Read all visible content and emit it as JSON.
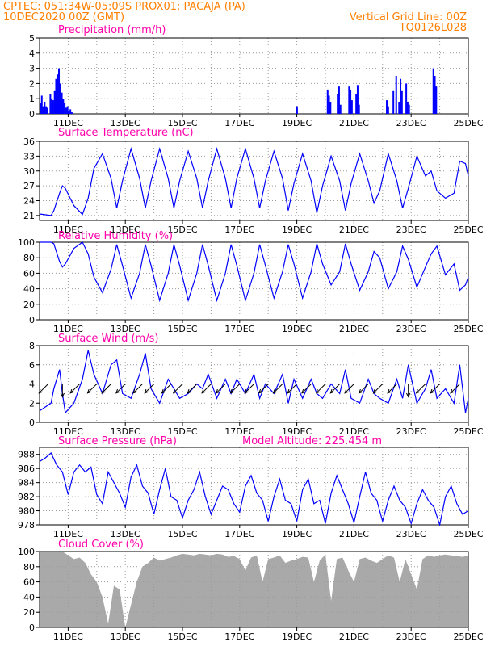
{
  "header": {
    "line1_left": "CPTEC:    051:34W-05:09S    PROX01: PACAJA (PA)",
    "line2_left": "10DEC2020 00Z (GMT)",
    "line2_right": "Vertical Grid Line: 00Z",
    "line3_right": "TQ0126L028"
  },
  "colors": {
    "header": "#ff8000",
    "title": "#ff00aa",
    "line": "#0000ff",
    "cloud": "#a9a9a9",
    "grid": "#9a9a9a"
  },
  "x_axis": {
    "tick_labels": [
      "11DEC",
      "13DEC",
      "15DEC",
      "17DEC",
      "19DEC",
      "21DEC",
      "23DEC",
      "25DEC"
    ],
    "tick_days": [
      11,
      13,
      15,
      17,
      19,
      21,
      23,
      25
    ],
    "start_day": 10,
    "end_day": 25
  },
  "chart_data": [
    {
      "type": "bar",
      "title": "Precipitation (mm/h)",
      "ylim": [
        0,
        5
      ],
      "yticks": [
        0,
        1,
        2,
        3,
        4,
        5
      ],
      "grid": true,
      "x": [
        10.0,
        10.05,
        10.1,
        10.15,
        10.2,
        10.25,
        10.35,
        10.4,
        10.45,
        10.5,
        10.55,
        10.6,
        10.65,
        10.7,
        10.75,
        10.8,
        10.85,
        10.9,
        10.95,
        11.0,
        11.05,
        11.1,
        18.98,
        20.05,
        20.1,
        20.15,
        20.4,
        20.45,
        20.5,
        20.8,
        20.85,
        20.9,
        21.05,
        21.1,
        21.15,
        22.12,
        22.17,
        22.35,
        22.45,
        22.55,
        22.6,
        22.65,
        22.8,
        22.85,
        22.9,
        23.75,
        23.8,
        23.85
      ],
      "values": [
        0.7,
        1.2,
        0.5,
        0.8,
        0.5,
        0.4,
        1.3,
        1.0,
        0.9,
        1.5,
        2.3,
        2.6,
        3.0,
        2.0,
        1.4,
        1.0,
        0.7,
        0.4,
        0.5,
        0.2,
        0.3,
        0.1,
        0.5,
        1.6,
        1.2,
        0.8,
        1.3,
        1.8,
        0.6,
        1.8,
        1.6,
        0.9,
        1.3,
        1.9,
        0.6,
        0.9,
        0.5,
        1.5,
        2.5,
        0.8,
        2.3,
        1.5,
        2.0,
        0.8,
        0.6,
        3.0,
        2.5,
        1.8
      ]
    },
    {
      "type": "line",
      "title": "Surface Temperature (nC)",
      "ylim": [
        20,
        36
      ],
      "yticks": [
        21,
        24,
        27,
        30,
        33,
        36
      ],
      "grid": true,
      "x": [
        10.0,
        10.4,
        10.5,
        10.7,
        10.8,
        10.9,
        11.2,
        11.5,
        11.7,
        11.9,
        12.2,
        12.5,
        12.7,
        12.9,
        13.2,
        13.5,
        13.7,
        13.9,
        14.2,
        14.5,
        14.7,
        14.9,
        15.2,
        15.5,
        15.7,
        15.9,
        16.2,
        16.5,
        16.7,
        16.9,
        17.2,
        17.5,
        17.7,
        17.9,
        18.2,
        18.5,
        18.7,
        18.9,
        19.2,
        19.5,
        19.7,
        19.9,
        20.2,
        20.5,
        20.7,
        20.9,
        21.2,
        21.5,
        21.7,
        21.9,
        22.2,
        22.5,
        22.7,
        22.9,
        23.2,
        23.5,
        23.7,
        23.9,
        24.2,
        24.5,
        24.7,
        24.9,
        25.0
      ],
      "values": [
        21.3,
        21.0,
        22.0,
        25.5,
        27.0,
        26.5,
        23.0,
        21.2,
        24.5,
        30.5,
        33.5,
        28.5,
        22.5,
        28.0,
        34.5,
        28.5,
        22.5,
        28.0,
        34.5,
        28.5,
        22.5,
        28.0,
        34.0,
        28.5,
        22.5,
        28.0,
        34.5,
        28.5,
        22.5,
        28.5,
        34.5,
        28.5,
        22.5,
        28.0,
        34.0,
        28.5,
        22.0,
        27.5,
        33.5,
        28.0,
        21.5,
        27.0,
        33.0,
        28.0,
        22.0,
        27.5,
        33.5,
        28.0,
        23.5,
        26.0,
        33.5,
        28.0,
        22.5,
        26.5,
        33.0,
        29.0,
        30.0,
        26.0,
        24.5,
        25.5,
        32.0,
        31.5,
        29.0
      ]
    },
    {
      "type": "line",
      "title": "Relative Humidity (%)",
      "ylim": [
        0,
        100
      ],
      "yticks": [
        0,
        20,
        40,
        60,
        80,
        100
      ],
      "grid": true,
      "x": [
        10.0,
        10.4,
        10.5,
        10.7,
        10.8,
        10.9,
        11.2,
        11.5,
        11.7,
        11.9,
        12.2,
        12.5,
        12.7,
        12.9,
        13.2,
        13.5,
        13.7,
        13.9,
        14.2,
        14.5,
        14.7,
        14.9,
        15.2,
        15.5,
        15.7,
        15.9,
        16.2,
        16.5,
        16.7,
        16.9,
        17.2,
        17.5,
        17.7,
        17.9,
        18.2,
        18.5,
        18.7,
        18.9,
        19.2,
        19.5,
        19.7,
        19.9,
        20.2,
        20.5,
        20.7,
        20.9,
        21.2,
        21.5,
        21.7,
        21.9,
        22.2,
        22.5,
        22.7,
        22.9,
        23.2,
        23.5,
        23.7,
        23.9,
        24.2,
        24.5,
        24.7,
        24.9,
        25.0
      ],
      "values": [
        100,
        100,
        98,
        75,
        68,
        72,
        92,
        100,
        85,
        55,
        35,
        65,
        97,
        70,
        28,
        60,
        97,
        70,
        25,
        60,
        97,
        70,
        25,
        60,
        97,
        70,
        25,
        60,
        97,
        70,
        25,
        60,
        97,
        70,
        28,
        62,
        97,
        72,
        28,
        62,
        98,
        72,
        45,
        62,
        98,
        72,
        38,
        62,
        88,
        80,
        40,
        62,
        95,
        78,
        42,
        68,
        85,
        95,
        58,
        72,
        38,
        45,
        55
      ]
    },
    {
      "type": "line",
      "title": "Surface Wind (m/s)",
      "ylim": [
        0,
        8
      ],
      "yticks": [
        0,
        2,
        4,
        6,
        8
      ],
      "grid": true,
      "x": [
        10.0,
        10.4,
        10.5,
        10.7,
        10.8,
        10.9,
        11.2,
        11.5,
        11.7,
        11.9,
        12.2,
        12.5,
        12.7,
        12.9,
        13.2,
        13.5,
        13.7,
        13.9,
        14.2,
        14.5,
        14.7,
        14.9,
        15.2,
        15.5,
        15.7,
        15.9,
        16.2,
        16.5,
        16.7,
        16.9,
        17.2,
        17.5,
        17.7,
        17.9,
        18.2,
        18.5,
        18.7,
        18.9,
        19.2,
        19.5,
        19.7,
        19.9,
        20.2,
        20.5,
        20.7,
        20.9,
        21.2,
        21.5,
        21.7,
        21.9,
        22.2,
        22.5,
        22.7,
        22.9,
        23.2,
        23.5,
        23.7,
        23.9,
        24.2,
        24.5,
        24.7,
        24.9,
        25.0
      ],
      "values": [
        1.2,
        2.0,
        3.5,
        5.5,
        3.0,
        1.0,
        2.0,
        4.5,
        7.5,
        5.0,
        3.0,
        6.0,
        6.5,
        3.0,
        2.5,
        5.0,
        7.2,
        3.5,
        2.0,
        4.5,
        3.5,
        2.5,
        3.0,
        4.0,
        3.5,
        5.0,
        2.5,
        4.5,
        3.0,
        4.5,
        3.0,
        5.0,
        2.5,
        4.0,
        3.0,
        5.0,
        2.0,
        4.5,
        2.5,
        4.5,
        3.0,
        2.5,
        4.0,
        3.0,
        5.5,
        2.5,
        2.0,
        4.5,
        3.0,
        2.5,
        2.0,
        4.5,
        2.5,
        6.0,
        2.0,
        3.5,
        5.5,
        2.5,
        3.5,
        2.0,
        6.0,
        1.0,
        2.5
      ],
      "wind_barbs": {
        "x": [
          10.3,
          10.8,
          11.4,
          12.0,
          12.5,
          13.0,
          13.6,
          14.0,
          14.6,
          15.0,
          15.5,
          16.0,
          16.5,
          17.0,
          17.5,
          18.0,
          18.5,
          19.0,
          19.5,
          20.0,
          20.5,
          21.0,
          21.5,
          22.0,
          22.5,
          22.9,
          23.5,
          24.0,
          24.7
        ],
        "direction_deg": [
          45,
          90,
          45,
          45,
          45,
          45,
          45,
          45,
          45,
          45,
          45,
          45,
          45,
          45,
          45,
          45,
          45,
          45,
          45,
          45,
          45,
          45,
          45,
          45,
          45,
          90,
          45,
          45,
          45
        ]
      }
    },
    {
      "type": "line",
      "title": "Surface Pressure (hPa)",
      "subtitle": "Model Altitude: 225.454 m",
      "ylim": [
        978,
        989
      ],
      "yticks": [
        978,
        980,
        982,
        984,
        986,
        988
      ],
      "grid": true,
      "x": [
        10.0,
        10.2,
        10.4,
        10.6,
        10.8,
        11.0,
        11.2,
        11.4,
        11.6,
        11.8,
        12.0,
        12.2,
        12.4,
        12.6,
        12.8,
        13.0,
        13.2,
        13.4,
        13.6,
        13.8,
        14.0,
        14.2,
        14.4,
        14.6,
        14.8,
        15.0,
        15.2,
        15.4,
        15.6,
        15.8,
        16.0,
        16.2,
        16.4,
        16.6,
        16.8,
        17.0,
        17.2,
        17.4,
        17.6,
        17.8,
        18.0,
        18.2,
        18.4,
        18.6,
        18.8,
        19.0,
        19.2,
        19.4,
        19.6,
        19.8,
        20.0,
        20.2,
        20.4,
        20.6,
        20.8,
        21.0,
        21.2,
        21.4,
        21.6,
        21.8,
        22.0,
        22.2,
        22.4,
        22.6,
        22.8,
        23.0,
        23.2,
        23.4,
        23.6,
        23.8,
        24.0,
        24.2,
        24.4,
        24.6,
        24.8,
        25.0
      ],
      "values": [
        987.0,
        987.5,
        988.2,
        986.5,
        985.5,
        982.3,
        985.5,
        986.5,
        985.5,
        986.2,
        982.3,
        981.0,
        985.5,
        984.0,
        982.5,
        980.5,
        984.8,
        986.5,
        983.5,
        982.5,
        979.5,
        983.0,
        986.0,
        982.0,
        981.5,
        979.0,
        981.5,
        983.0,
        985.5,
        982.0,
        979.5,
        981.5,
        983.5,
        983.0,
        981.0,
        979.8,
        983.5,
        985.0,
        982.5,
        981.5,
        978.5,
        982.0,
        984.5,
        981.5,
        981.0,
        978.5,
        983.0,
        984.5,
        981.0,
        981.5,
        978.2,
        982.5,
        985.0,
        983.0,
        981.0,
        978.3,
        982.0,
        985.5,
        982.5,
        981.5,
        978.5,
        981.5,
        983.5,
        981.5,
        980.5,
        978.2,
        981.0,
        983.0,
        981.5,
        980.5,
        978.0,
        982.0,
        983.5,
        981.0,
        979.5,
        980.0
      ]
    },
    {
      "type": "bar",
      "title": "Cloud Cover (%)",
      "ylim": [
        0,
        100
      ],
      "yticks": [
        0,
        20,
        40,
        60,
        80,
        100
      ],
      "grid": true,
      "x": [
        10.0,
        10.2,
        10.4,
        10.6,
        10.8,
        11.0,
        11.2,
        11.4,
        11.6,
        11.8,
        12.0,
        12.2,
        12.4,
        12.6,
        12.8,
        13.0,
        13.2,
        13.4,
        13.6,
        13.8,
        14.0,
        14.2,
        14.4,
        14.6,
        14.8,
        15.0,
        15.2,
        15.4,
        15.6,
        15.8,
        16.0,
        16.2,
        16.4,
        16.6,
        16.8,
        17.0,
        17.2,
        17.4,
        17.6,
        17.8,
        18.0,
        18.2,
        18.4,
        18.6,
        18.8,
        19.0,
        19.2,
        19.4,
        19.6,
        19.8,
        20.0,
        20.2,
        20.4,
        20.6,
        20.8,
        21.0,
        21.2,
        21.4,
        21.6,
        21.8,
        22.0,
        22.2,
        22.4,
        22.6,
        22.8,
        23.0,
        23.2,
        23.4,
        23.6,
        23.8,
        24.0,
        24.2,
        24.4,
        24.6,
        24.8,
        25.0
      ],
      "values": [
        100,
        100,
        100,
        100,
        100,
        95,
        90,
        92,
        85,
        70,
        60,
        40,
        5,
        55,
        50,
        0,
        30,
        60,
        80,
        85,
        92,
        88,
        90,
        92,
        95,
        97,
        96,
        95,
        97,
        96,
        95,
        97,
        96,
        93,
        94,
        90,
        75,
        92,
        95,
        60,
        90,
        92,
        95,
        85,
        88,
        90,
        93,
        92,
        60,
        88,
        96,
        35,
        90,
        92,
        75,
        60,
        90,
        92,
        88,
        85,
        90,
        95,
        92,
        60,
        90,
        70,
        50,
        90,
        95,
        93,
        95,
        96,
        95,
        94,
        93,
        95
      ]
    }
  ]
}
